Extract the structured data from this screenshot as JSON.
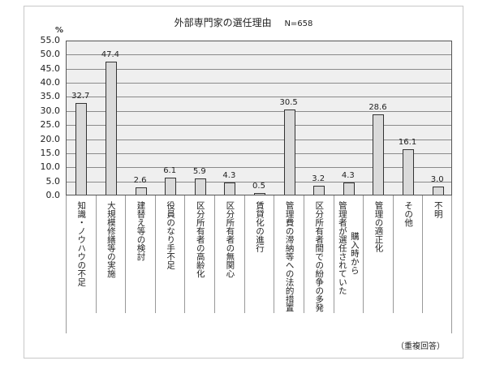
{
  "chart_data": {
    "type": "bar",
    "title": "外部専門家の選任理由",
    "sample_size": "N=658",
    "ylabel": "%",
    "xlabel": "",
    "ylim": [
      0,
      55
    ],
    "yticks": [
      "55.0",
      "50.0",
      "45.0",
      "40.0",
      "35.0",
      "30.0",
      "25.0",
      "20.0",
      "15.0",
      "10.0",
      "5.0",
      "0.0"
    ],
    "grid": true,
    "legend": null,
    "note": "（重複回答）",
    "categories": [
      "知識・ノウハウの不足",
      "大規模修繕等の実施",
      "建替え等の検討",
      "役員のなり手不足",
      "区分所有者の高齢化",
      "区分所有者の無関心",
      "賃貸化の進行",
      "管理費の滞納等への法的措置",
      "区分所有者間での紛争の多発",
      "購入時から管理者が選任されていた",
      "管理の適正化",
      "その他",
      "不明"
    ],
    "values": [
      32.7,
      47.4,
      2.6,
      6.1,
      5.9,
      4.3,
      0.5,
      30.5,
      3.2,
      4.3,
      28.6,
      16.1,
      3.0
    ],
    "value_labels": [
      "32.7",
      "47.4",
      "2.6",
      "6.1",
      "5.9",
      "4.3",
      "0.5",
      "30.5",
      "3.2",
      "4.3",
      "28.6",
      "16.1",
      "3.0"
    ],
    "colors": {
      "bar_fill": "#dadada",
      "bar_border": "#333333",
      "plot_bg": "#efefef",
      "grid": "#8a8a8a"
    }
  }
}
